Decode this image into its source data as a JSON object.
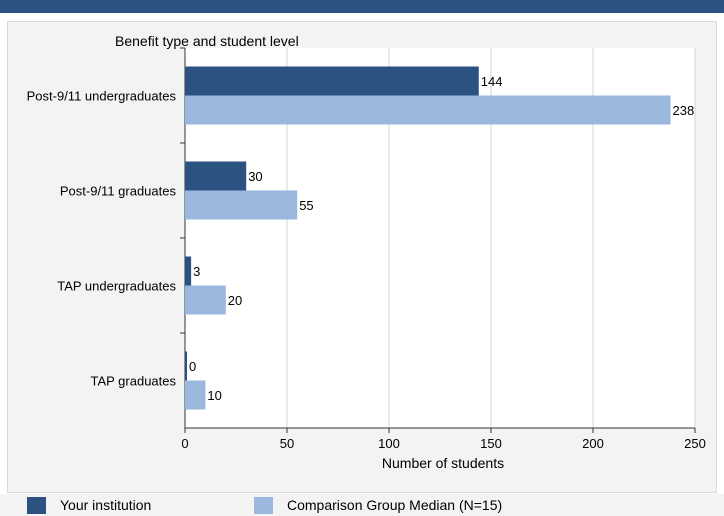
{
  "chart_data": {
    "type": "bar",
    "orientation": "horizontal",
    "group_axis_title": "Benefit type and student level",
    "categories": [
      "Post-9/11 undergraduates",
      "Post-9/11 graduates",
      "TAP undergraduates",
      "TAP graduates"
    ],
    "series": [
      {
        "name": "Your institution",
        "color": "#2c5282",
        "values": [
          144,
          30,
          3,
          0
        ]
      },
      {
        "name": "Comparison Group Median (N=15)",
        "color": "#9ab8de",
        "values": [
          238,
          55,
          20,
          10
        ]
      }
    ],
    "xlabel": "Number of students",
    "xlim": [
      0,
      250
    ],
    "xticks": [
      0,
      50,
      100,
      150,
      200,
      250
    ],
    "grid": true,
    "legend_position": "bottom"
  }
}
